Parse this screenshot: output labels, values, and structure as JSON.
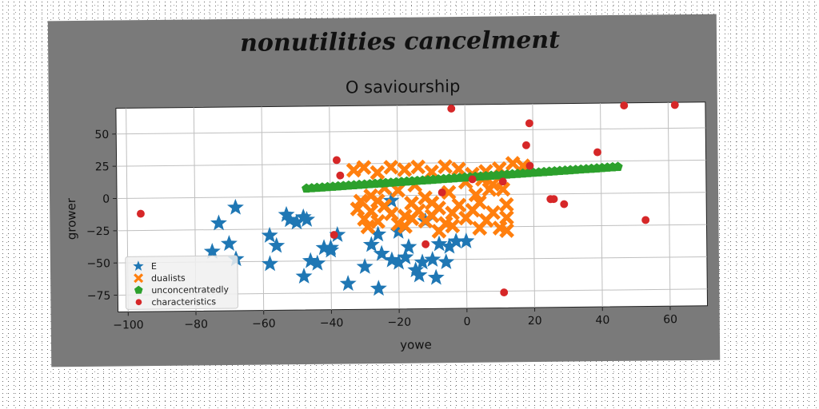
{
  "chart_data": {
    "type": "scatter",
    "suptitle": "nonutilities cancelment",
    "title": "O saviourship",
    "xlabel": "yowe",
    "ylabel": "grower",
    "xlim": [
      -103,
      71
    ],
    "ylim": [
      -88,
      70
    ],
    "xticks": [
      -100,
      -80,
      -60,
      -40,
      -20,
      0,
      20,
      40,
      60
    ],
    "yticks": [
      -75,
      -50,
      -25,
      0,
      25,
      50
    ],
    "grid": true,
    "legend_position": "lower-left",
    "series": [
      {
        "name": "E",
        "marker": "star",
        "color": "#1f77b4",
        "points": [
          [
            -68,
            -8
          ],
          [
            -73,
            -20
          ],
          [
            -75,
            -42
          ],
          [
            -70,
            -36
          ],
          [
            -68,
            -48
          ],
          [
            -58,
            -30
          ],
          [
            -56,
            -38
          ],
          [
            -58,
            -52
          ],
          [
            -53,
            -14
          ],
          [
            -52,
            -18
          ],
          [
            -50,
            -20
          ],
          [
            -48,
            -16
          ],
          [
            -47,
            -18
          ],
          [
            -46,
            -50
          ],
          [
            -44,
            -52
          ],
          [
            -42,
            -40
          ],
          [
            -40,
            -42
          ],
          [
            -38,
            -30
          ],
          [
            -35,
            -68
          ],
          [
            -30,
            -55
          ],
          [
            -28,
            -38
          ],
          [
            -26,
            -30
          ],
          [
            -25,
            -45
          ],
          [
            -22,
            -50
          ],
          [
            -20,
            -52
          ],
          [
            -18,
            -48
          ],
          [
            -26,
            -72
          ],
          [
            -17,
            -40
          ],
          [
            -15,
            -58
          ],
          [
            -13,
            -52
          ],
          [
            -14,
            -62
          ],
          [
            -10,
            -50
          ],
          [
            -8,
            -38
          ],
          [
            -9,
            -64
          ],
          [
            -6,
            -52
          ],
          [
            -5,
            -40
          ],
          [
            0,
            -36
          ],
          [
            -3,
            -36
          ],
          [
            -22,
            -4
          ],
          [
            -12,
            -20
          ],
          [
            -48,
            -62
          ],
          [
            -40,
            -40
          ],
          [
            -20,
            -28
          ]
        ]
      },
      {
        "name": "dualists",
        "marker": "x",
        "color": "#ff7f0e",
        "points": [
          [
            -33,
            20
          ],
          [
            -30,
            22
          ],
          [
            -26,
            18
          ],
          [
            -22,
            22
          ],
          [
            -18,
            20
          ],
          [
            -14,
            22
          ],
          [
            -10,
            18
          ],
          [
            -6,
            22
          ],
          [
            -2,
            20
          ],
          [
            2,
            16
          ],
          [
            6,
            18
          ],
          [
            10,
            20
          ],
          [
            14,
            24
          ],
          [
            17,
            22
          ],
          [
            -32,
            -10
          ],
          [
            -30,
            -18
          ],
          [
            -29,
            -24
          ],
          [
            -31,
            -4
          ],
          [
            -28,
            -12
          ],
          [
            -26,
            -20
          ],
          [
            -24,
            -8
          ],
          [
            -22,
            -14
          ],
          [
            -20,
            -22
          ],
          [
            -18,
            -16
          ],
          [
            -16,
            -6
          ],
          [
            -14,
            -12
          ],
          [
            -12,
            -20
          ],
          [
            -10,
            -16
          ],
          [
            -8,
            -10
          ],
          [
            -6,
            -22
          ],
          [
            -4,
            -14
          ],
          [
            -2,
            -8
          ],
          [
            0,
            -18
          ],
          [
            2,
            -12
          ],
          [
            4,
            -6
          ],
          [
            6,
            -20
          ],
          [
            8,
            -14
          ],
          [
            10,
            -26
          ],
          [
            12,
            -18
          ],
          [
            12,
            -8
          ],
          [
            11,
            4
          ],
          [
            8,
            8
          ],
          [
            5,
            12
          ],
          [
            3,
            0
          ],
          [
            -5,
            2
          ],
          [
            -12,
            -2
          ],
          [
            -20,
            4
          ],
          [
            -24,
            6
          ],
          [
            -28,
            0
          ],
          [
            -8,
            -28
          ],
          [
            -4,
            -24
          ],
          [
            4,
            -26
          ],
          [
            12,
            -28
          ],
          [
            -18,
            -24
          ],
          [
            -26,
            -4
          ],
          [
            -15,
            8
          ],
          [
            0,
            10
          ],
          [
            7,
            4
          ],
          [
            -10,
            -6
          ],
          [
            -16,
            -18
          ]
        ]
      },
      {
        "name": "unconcentratedly",
        "marker": "pentagon",
        "color": "#2ca02c",
        "x_start": -47,
        "x_end": 45,
        "count": 60,
        "slope": 0.155,
        "intercept": 13.5
      },
      {
        "name": "characteristics",
        "marker": "circle",
        "color": "#d62728",
        "points": [
          [
            -96,
            -12
          ],
          [
            -38,
            28
          ],
          [
            -37,
            16
          ],
          [
            -39,
            -30
          ],
          [
            -12,
            -38
          ],
          [
            -7,
            2
          ],
          [
            -4,
            67
          ],
          [
            2,
            12
          ],
          [
            11,
            -76
          ],
          [
            11,
            10
          ],
          [
            18,
            38
          ],
          [
            19,
            55
          ],
          [
            19,
            22
          ],
          [
            25,
            -4
          ],
          [
            26,
            -4
          ],
          [
            29,
            -8
          ],
          [
            39,
            32
          ],
          [
            47,
            68
          ],
          [
            53,
            -21
          ],
          [
            62,
            68
          ]
        ]
      }
    ]
  }
}
